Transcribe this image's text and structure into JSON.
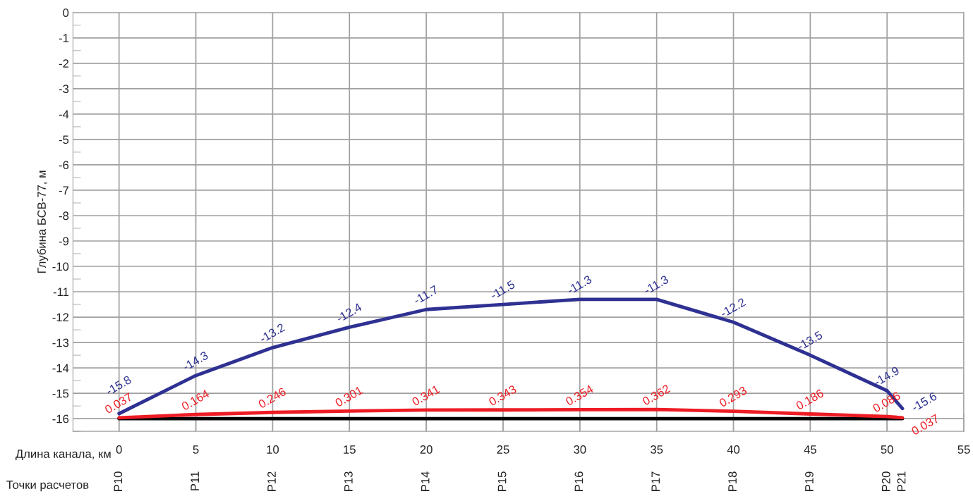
{
  "chart_data": {
    "type": "line",
    "ylabel": "Глубина БСВ-77, м",
    "xlabel": "Длина канала, км",
    "xlim": [
      -3,
      55
    ],
    "xticks": [
      0,
      5,
      10,
      15,
      20,
      25,
      30,
      35,
      40,
      45,
      50,
      55
    ],
    "ylim": [
      -16.5,
      0
    ],
    "yticks": [
      0,
      -1,
      -2,
      -3,
      -4,
      -5,
      -6,
      -7,
      -8,
      -9,
      -10,
      -11,
      -12,
      -13,
      -14,
      -15,
      -16
    ],
    "y2lim": [
      -0.5,
      16
    ],
    "tick_labels": "xy",
    "annotations": [
      "Точки расчетов",
      "P10",
      "P11",
      "P12",
      "P13",
      "P14",
      "P15",
      "P16",
      "P17",
      "P18",
      "P19",
      "P20",
      "P21"
    ],
    "grid": true,
    "marker": "none",
    "line_style": "solid",
    "series": [
      {
        "color": "#000000",
        "x": [
          0,
          51
        ],
        "values": [
          -16,
          -16
        ]
      },
      {
        "color": "#ed1c24",
        "axis": "y2",
        "x": [
          0,
          5,
          10,
          15,
          20,
          25,
          30,
          35,
          40,
          45,
          50,
          51
        ],
        "values": [
          0.037,
          0.164,
          0.246,
          0.301,
          0.341,
          0.343,
          0.354,
          0.362,
          0.293,
          0.186,
          0.086,
          0.037
        ],
        "value_labels": [
          "0.037",
          "0.164",
          "0.246",
          "0.301",
          "0.341",
          "0.343",
          "0.354",
          "0.362",
          "0.293",
          "0.186",
          "0.086",
          "0.037"
        ]
      },
      {
        "color": "#2e3192",
        "x": [
          0,
          5,
          10,
          15,
          20,
          25,
          30,
          35,
          40,
          45,
          50,
          51
        ],
        "values": [
          -15.8,
          -14.3,
          -13.2,
          -12.4,
          -11.7,
          -11.5,
          -11.3,
          -11.3,
          -12.2,
          -13.5,
          -14.9,
          -15.6
        ],
        "value_labels": [
          "-15.8",
          "-14.3",
          "-13.2",
          "-12.4",
          "-11.7",
          "-11.5",
          "-11.3",
          "-11.3",
          "-12.2",
          "-13.5",
          "-14.9",
          "-15.6"
        ]
      }
    ]
  }
}
